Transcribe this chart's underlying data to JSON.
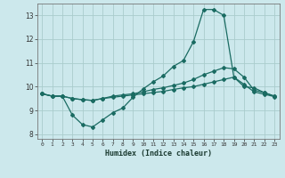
{
  "xlabel": "Humidex (Indice chaleur)",
  "xlim": [
    -0.5,
    23.5
  ],
  "ylim": [
    7.8,
    13.5
  ],
  "yticks": [
    8,
    9,
    10,
    11,
    12,
    13
  ],
  "xticks": [
    0,
    1,
    2,
    3,
    4,
    5,
    6,
    7,
    8,
    9,
    10,
    11,
    12,
    13,
    14,
    15,
    16,
    17,
    18,
    19,
    20,
    21,
    22,
    23
  ],
  "bg_color": "#cce8ec",
  "line_color": "#1a6b62",
  "grid_color": "#aacccc",
  "line1_x": [
    0,
    1,
    2,
    3,
    4,
    5,
    6,
    7,
    8,
    9,
    10,
    11,
    12,
    13,
    14,
    15,
    16,
    17,
    18,
    19,
    20,
    21,
    22,
    23
  ],
  "line1_y": [
    9.7,
    9.6,
    9.6,
    8.8,
    8.4,
    8.3,
    8.6,
    8.9,
    9.1,
    9.55,
    9.9,
    10.2,
    10.45,
    10.85,
    11.1,
    11.9,
    13.25,
    13.25,
    13.0,
    10.4,
    10.0,
    9.95,
    9.75,
    9.6
  ],
  "line2_x": [
    0,
    1,
    2,
    3,
    4,
    5,
    6,
    7,
    8,
    9,
    10,
    11,
    12,
    13,
    14,
    15,
    16,
    17,
    18,
    19,
    20,
    21,
    22,
    23
  ],
  "line2_y": [
    9.7,
    9.6,
    9.6,
    9.5,
    9.45,
    9.42,
    9.5,
    9.6,
    9.65,
    9.7,
    9.78,
    9.88,
    9.95,
    10.05,
    10.15,
    10.3,
    10.5,
    10.65,
    10.8,
    10.75,
    10.4,
    9.85,
    9.75,
    9.6
  ],
  "line3_x": [
    0,
    1,
    2,
    3,
    4,
    5,
    6,
    7,
    8,
    9,
    10,
    11,
    12,
    13,
    14,
    15,
    16,
    17,
    18,
    19,
    20,
    21,
    22,
    23
  ],
  "line3_y": [
    9.7,
    9.6,
    9.6,
    9.5,
    9.45,
    9.42,
    9.5,
    9.55,
    9.6,
    9.65,
    9.7,
    9.75,
    9.8,
    9.88,
    9.95,
    10.0,
    10.1,
    10.2,
    10.3,
    10.4,
    10.1,
    9.78,
    9.68,
    9.58
  ]
}
